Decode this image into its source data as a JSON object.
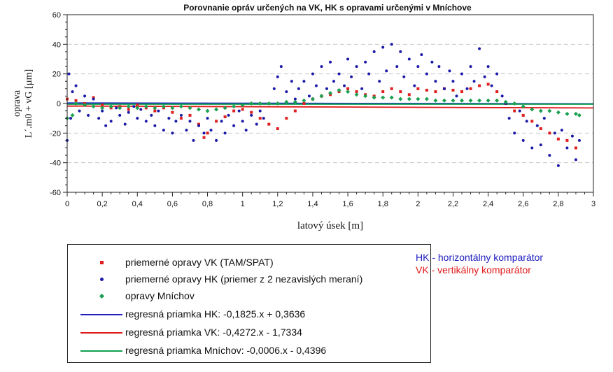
{
  "chart_data": {
    "type": "scatter",
    "title": "Porovnanie opráv určených na VK, HK s opravami určenými v Mníchove",
    "xlabel": "latový úsek [m]",
    "ylabel_line1": "oprava",
    "ylabel_line2": "L´.m0 + vG  [µm]",
    "xlim": [
      0,
      3
    ],
    "ylim": [
      -60,
      60
    ],
    "x_ticks": [
      0,
      0.2,
      0.4,
      0.6,
      0.8,
      1,
      1.2,
      1.4,
      1.6,
      1.8,
      2,
      2.2,
      2.4,
      2.6,
      2.8,
      3
    ],
    "x_tick_labels": [
      "0",
      "0,2",
      "0,4",
      "0,6",
      "0,8",
      "1",
      "1,2",
      "1,4",
      "1,6",
      "1,8",
      "2",
      "2,2",
      "2,4",
      "2,6",
      "2,8",
      "3"
    ],
    "y_ticks": [
      -60,
      -40,
      -20,
      0,
      20,
      40,
      60
    ],
    "y_tick_labels": [
      "-60",
      "-40",
      "-20",
      "0",
      "20",
      "40",
      "60"
    ],
    "grid": "horizontal dashed",
    "series": [
      {
        "name": "priemerné opravy VK (TAM/SPAT)",
        "marker": "square",
        "color": "#e02020",
        "points": [
          [
            0.0,
            3
          ],
          [
            0.05,
            2
          ],
          [
            0.1,
            0
          ],
          [
            0.15,
            4
          ],
          [
            0.2,
            -1
          ],
          [
            0.25,
            -3
          ],
          [
            0.3,
            -2
          ],
          [
            0.35,
            -4
          ],
          [
            0.4,
            -1
          ],
          [
            0.45,
            -3
          ],
          [
            0.5,
            -5
          ],
          [
            0.55,
            -3
          ],
          [
            0.6,
            -6
          ],
          [
            0.65,
            -10
          ],
          [
            0.7,
            -8
          ],
          [
            0.75,
            -14
          ],
          [
            0.78,
            -23
          ],
          [
            0.8,
            -20
          ],
          [
            0.85,
            -12
          ],
          [
            0.9,
            -9
          ],
          [
            0.95,
            -5
          ],
          [
            1.0,
            -4
          ],
          [
            1.05,
            -6
          ],
          [
            1.1,
            -10
          ],
          [
            1.15,
            -14
          ],
          [
            1.2,
            -17
          ],
          [
            1.25,
            -10
          ],
          [
            1.3,
            -5
          ],
          [
            1.35,
            0
          ],
          [
            1.4,
            3
          ],
          [
            1.45,
            5
          ],
          [
            1.5,
            6
          ],
          [
            1.55,
            8
          ],
          [
            1.6,
            10
          ],
          [
            1.65,
            8
          ],
          [
            1.7,
            6
          ],
          [
            1.75,
            5
          ],
          [
            1.8,
            8
          ],
          [
            1.85,
            10
          ],
          [
            1.9,
            8
          ],
          [
            1.95,
            6
          ],
          [
            2.0,
            10
          ],
          [
            2.05,
            9
          ],
          [
            2.1,
            8
          ],
          [
            2.15,
            10
          ],
          [
            2.2,
            9
          ],
          [
            2.25,
            8
          ],
          [
            2.3,
            10
          ],
          [
            2.35,
            12
          ],
          [
            2.4,
            13
          ],
          [
            2.45,
            8
          ],
          [
            2.5,
            0
          ],
          [
            2.55,
            -5
          ],
          [
            2.6,
            -8
          ],
          [
            2.65,
            -12
          ],
          [
            2.7,
            -17
          ],
          [
            2.75,
            -20
          ],
          [
            2.8,
            -24
          ],
          [
            2.85,
            -25
          ],
          [
            2.9,
            -30
          ]
        ]
      },
      {
        "name": "priemerné opravy HK (priemer z 2 nezavislých meraní)",
        "marker": "circle",
        "color": "#1a1aa8",
        "points": [
          [
            0.0,
            -25
          ],
          [
            0.01,
            20
          ],
          [
            0.02,
            -10
          ],
          [
            0.03,
            8
          ],
          [
            0.05,
            12
          ],
          [
            0.07,
            -5
          ],
          [
            0.1,
            5
          ],
          [
            0.12,
            -8
          ],
          [
            0.15,
            3
          ],
          [
            0.18,
            -10
          ],
          [
            0.2,
            -5
          ],
          [
            0.22,
            -15
          ],
          [
            0.25,
            -12
          ],
          [
            0.28,
            -3
          ],
          [
            0.3,
            -8
          ],
          [
            0.33,
            -14
          ],
          [
            0.35,
            -6
          ],
          [
            0.38,
            -2
          ],
          [
            0.4,
            -10
          ],
          [
            0.42,
            -4
          ],
          [
            0.45,
            -12
          ],
          [
            0.48,
            -8
          ],
          [
            0.5,
            -15
          ],
          [
            0.52,
            -5
          ],
          [
            0.55,
            -18
          ],
          [
            0.58,
            -10
          ],
          [
            0.6,
            -20
          ],
          [
            0.62,
            -12
          ],
          [
            0.65,
            -8
          ],
          [
            0.68,
            -18
          ],
          [
            0.7,
            -12
          ],
          [
            0.72,
            -25
          ],
          [
            0.75,
            -15
          ],
          [
            0.78,
            -20
          ],
          [
            0.8,
            -10
          ],
          [
            0.82,
            -18
          ],
          [
            0.85,
            -25
          ],
          [
            0.88,
            -12
          ],
          [
            0.9,
            -20
          ],
          [
            0.92,
            -8
          ],
          [
            0.95,
            -15
          ],
          [
            0.98,
            -5
          ],
          [
            1.0,
            -12
          ],
          [
            1.02,
            -18
          ],
          [
            1.05,
            -8
          ],
          [
            1.08,
            -14
          ],
          [
            1.1,
            -5
          ],
          [
            1.12,
            -10
          ],
          [
            1.15,
            0
          ],
          [
            1.18,
            10
          ],
          [
            1.2,
            18
          ],
          [
            1.22,
            25
          ],
          [
            1.25,
            8
          ],
          [
            1.28,
            15
          ],
          [
            1.3,
            3
          ],
          [
            1.32,
            10
          ],
          [
            1.35,
            15
          ],
          [
            1.38,
            5
          ],
          [
            1.4,
            20
          ],
          [
            1.42,
            12
          ],
          [
            1.45,
            25
          ],
          [
            1.48,
            10
          ],
          [
            1.5,
            28
          ],
          [
            1.52,
            15
          ],
          [
            1.55,
            20
          ],
          [
            1.58,
            12
          ],
          [
            1.6,
            30
          ],
          [
            1.62,
            18
          ],
          [
            1.65,
            25
          ],
          [
            1.68,
            10
          ],
          [
            1.7,
            28
          ],
          [
            1.72,
            20
          ],
          [
            1.75,
            35
          ],
          [
            1.78,
            15
          ],
          [
            1.8,
            38
          ],
          [
            1.82,
            22
          ],
          [
            1.85,
            40
          ],
          [
            1.88,
            25
          ],
          [
            1.9,
            35
          ],
          [
            1.92,
            18
          ],
          [
            1.95,
            30
          ],
          [
            1.98,
            12
          ],
          [
            2.0,
            25
          ],
          [
            2.02,
            33
          ],
          [
            2.05,
            20
          ],
          [
            2.08,
            28
          ],
          [
            2.1,
            15
          ],
          [
            2.12,
            25
          ],
          [
            2.15,
            10
          ],
          [
            2.18,
            22
          ],
          [
            2.2,
            15
          ],
          [
            2.22,
            5
          ],
          [
            2.25,
            20
          ],
          [
            2.28,
            10
          ],
          [
            2.3,
            25
          ],
          [
            2.32,
            15
          ],
          [
            2.35,
            37
          ],
          [
            2.38,
            18
          ],
          [
            2.4,
            25
          ],
          [
            2.42,
            12
          ],
          [
            2.45,
            20
          ],
          [
            2.48,
            5
          ],
          [
            2.5,
            0
          ],
          [
            2.52,
            -10
          ],
          [
            2.55,
            -20
          ],
          [
            2.58,
            -5
          ],
          [
            2.6,
            -25
          ],
          [
            2.62,
            -12
          ],
          [
            2.65,
            -30
          ],
          [
            2.68,
            -15
          ],
          [
            2.7,
            -28
          ],
          [
            2.72,
            -10
          ],
          [
            2.75,
            -35
          ],
          [
            2.78,
            -20
          ],
          [
            2.8,
            -42
          ],
          [
            2.82,
            -18
          ],
          [
            2.85,
            -30
          ],
          [
            2.88,
            -22
          ],
          [
            2.9,
            -38
          ],
          [
            2.92,
            -25
          ]
        ]
      },
      {
        "name": "opravy Mníchov",
        "marker": "diamond",
        "color": "#1aa050",
        "points": [
          [
            0.0,
            -10
          ],
          [
            0.03,
            -8
          ],
          [
            0.05,
            0
          ],
          [
            0.1,
            -1
          ],
          [
            0.15,
            -2
          ],
          [
            0.2,
            -3
          ],
          [
            0.25,
            -2
          ],
          [
            0.3,
            -3
          ],
          [
            0.35,
            -2
          ],
          [
            0.4,
            -3
          ],
          [
            0.45,
            -2
          ],
          [
            0.5,
            -3
          ],
          [
            0.55,
            -2
          ],
          [
            0.6,
            -3
          ],
          [
            0.65,
            -2
          ],
          [
            0.7,
            -3
          ],
          [
            0.75,
            -4
          ],
          [
            0.8,
            -5
          ],
          [
            0.85,
            -4
          ],
          [
            0.9,
            -3
          ],
          [
            0.95,
            -2
          ],
          [
            1.0,
            -1
          ],
          [
            1.05,
            0
          ],
          [
            1.1,
            0
          ],
          [
            1.15,
            0
          ],
          [
            1.2,
            0
          ],
          [
            1.25,
            1
          ],
          [
            1.3,
            1
          ],
          [
            1.35,
            2
          ],
          [
            1.4,
            3
          ],
          [
            1.45,
            5
          ],
          [
            1.5,
            7
          ],
          [
            1.55,
            9
          ],
          [
            1.6,
            8
          ],
          [
            1.65,
            6
          ],
          [
            1.7,
            5
          ],
          [
            1.75,
            4
          ],
          [
            1.8,
            4
          ],
          [
            1.85,
            4
          ],
          [
            1.9,
            3
          ],
          [
            1.95,
            3
          ],
          [
            2.0,
            3
          ],
          [
            2.05,
            3
          ],
          [
            2.1,
            2
          ],
          [
            2.15,
            2
          ],
          [
            2.2,
            2
          ],
          [
            2.25,
            2
          ],
          [
            2.3,
            2
          ],
          [
            2.35,
            2
          ],
          [
            2.4,
            2
          ],
          [
            2.45,
            2
          ],
          [
            2.5,
            1
          ],
          [
            2.55,
            0
          ],
          [
            2.6,
            -2
          ],
          [
            2.65,
            -4
          ],
          [
            2.7,
            -5
          ],
          [
            2.75,
            -5
          ],
          [
            2.8,
            -6
          ],
          [
            2.85,
            -7
          ],
          [
            2.9,
            -7
          ],
          [
            2.92,
            -8
          ]
        ]
      },
      {
        "name": "regresná priamka HK: -0,1825.x + 0,3636",
        "type": "line",
        "color": "#2020c0",
        "slope": -0.1825,
        "intercept": 0.3636
      },
      {
        "name": "regresná priamka VK: -0,4272.x - 1,7334",
        "type": "line",
        "color": "#e01818",
        "slope": -0.4272,
        "intercept": -1.7334
      },
      {
        "name": "regresná priamka Mníchov: -0,0006.x - 0,4396",
        "type": "line",
        "color": "#10a050",
        "slope": -0.0006,
        "intercept": -0.4396
      }
    ],
    "annotations": [
      {
        "text": "HK - horizontálny komparátor",
        "color": "#2020c0"
      },
      {
        "text": "VK - vertikálny komparátor",
        "color": "#e01818"
      }
    ],
    "legend_position": "bottom-left"
  }
}
